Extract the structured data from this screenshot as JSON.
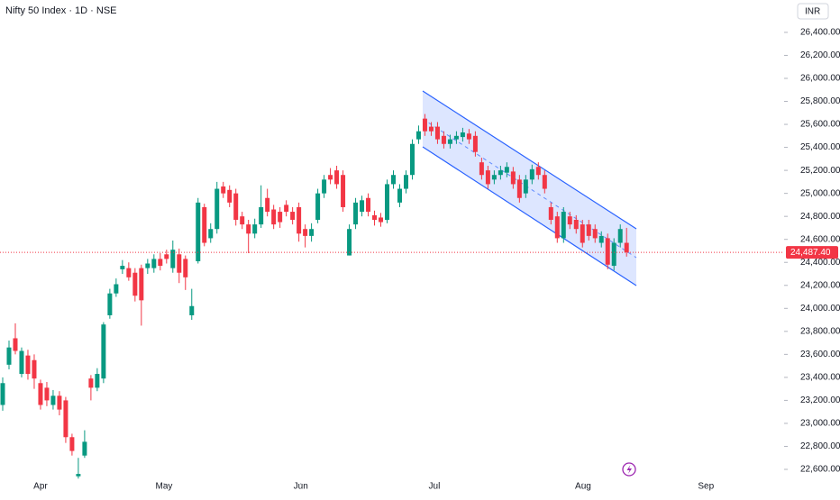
{
  "chart_data": {
    "type": "candlestick",
    "title": "Nifty 50 Index · 1D · NSE",
    "currency": "INR",
    "up_color": "#089981",
    "down_color": "#f23645",
    "open": [
      23160,
      23510,
      23740,
      23430,
      23590,
      23550,
      23350,
      23310,
      23160,
      23240,
      23200,
      22880,
      22540,
      22720,
      23390,
      23310,
      23390,
      23940,
      24130,
      24340,
      24350,
      24310,
      24350,
      24350,
      24350,
      24430,
      24470,
      24350,
      24470,
      24430,
      23940,
      24410,
      24880,
      24610,
      24690,
      25060,
      25030,
      25000,
      24800,
      24730,
      24650,
      24730,
      24960,
      24860,
      24840,
      24900,
      24840,
      24880,
      24690,
      24630,
      24770,
      25000,
      25160,
      25200,
      25160,
      24460,
      24730,
      24840,
      24960,
      24810,
      24790,
      24770,
      25080,
      24920,
      25040,
      25160,
      25470,
      25650,
      25580,
      25580,
      25500,
      25430,
      25470,
      25490,
      25520,
      25500,
      25270,
      25200,
      25120,
      25160,
      25180,
      25190,
      25120,
      25000,
      25120,
      25230,
      25160,
      24880,
      24800,
      24610,
      24800,
      24770,
      24730,
      24730,
      24690,
      24570,
      24610,
      24370,
      24570,
      24570
    ],
    "high": [
      23400,
      23720,
      23870,
      23660,
      23640,
      23600,
      23380,
      23360,
      23290,
      23280,
      23230,
      22910,
      22700,
      22940,
      23420,
      23480,
      23880,
      24170,
      24260,
      24420,
      24400,
      24350,
      24380,
      24430,
      24470,
      24480,
      24510,
      24590,
      24520,
      24460,
      24170,
      24960,
      24910,
      24740,
      25100,
      25100,
      25070,
      25040,
      24840,
      24770,
      24780,
      25070,
      25040,
      24900,
      24880,
      24940,
      24880,
      24920,
      24730,
      24740,
      25040,
      25160,
      25220,
      25240,
      25200,
      24730,
      24960,
      24980,
      25000,
      24850,
      24830,
      25120,
      25200,
      25080,
      25200,
      25470,
      25590,
      25690,
      25620,
      25620,
      25540,
      25510,
      25540,
      25570,
      25560,
      25540,
      25310,
      25240,
      25200,
      25240,
      25270,
      25230,
      25160,
      25160,
      25250,
      25270,
      25200,
      24920,
      24840,
      24880,
      24840,
      24810,
      24770,
      24770,
      24730,
      24670,
      24650,
      24610,
      24730,
      24700
    ],
    "low": [
      23110,
      23470,
      23600,
      23400,
      23380,
      23300,
      23120,
      23150,
      23120,
      23070,
      22830,
      22720,
      22520,
      22700,
      23200,
      23280,
      23350,
      23910,
      24100,
      24300,
      24240,
      24060,
      23850,
      24300,
      24310,
      24330,
      24390,
      24310,
      24220,
      24160,
      23900,
      24390,
      24540,
      24570,
      24650,
      24960,
      24880,
      24720,
      24690,
      24480,
      24610,
      24700,
      24800,
      24690,
      24700,
      24800,
      24730,
      24580,
      24530,
      24580,
      24740,
      24960,
      25080,
      25040,
      24840,
      24460,
      24690,
      24800,
      24800,
      24720,
      24710,
      24740,
      25040,
      24880,
      25000,
      25120,
      25430,
      25500,
      25500,
      25430,
      25390,
      25390,
      25430,
      25450,
      25430,
      25320,
      25120,
      25040,
      25080,
      25120,
      25140,
      25040,
      24920,
      24960,
      25080,
      25120,
      25000,
      24730,
      24570,
      24570,
      24690,
      24650,
      24530,
      24590,
      24570,
      24530,
      24340,
      24330,
      24530,
      24450
    ],
    "close": [
      23350,
      23660,
      23630,
      23630,
      23430,
      23390,
      23160,
      23200,
      23240,
      23120,
      22880,
      22760,
      22560,
      22840,
      23310,
      23430,
      23860,
      24130,
      24210,
      24370,
      24270,
      24110,
      24070,
      24390,
      24430,
      24370,
      24430,
      24510,
      24310,
      24270,
      24020,
      24920,
      24570,
      24690,
      25040,
      25000,
      24920,
      24770,
      24730,
      24650,
      24730,
      24880,
      24840,
      24730,
      24750,
      24840,
      24770,
      24650,
      24630,
      24690,
      25000,
      25120,
      25120,
      25080,
      24880,
      24690,
      24920,
      24940,
      24840,
      24770,
      24750,
      25080,
      25160,
      25040,
      25160,
      25430,
      25540,
      25540,
      25540,
      25470,
      25430,
      25470,
      25500,
      25530,
      25470,
      25360,
      25160,
      25080,
      25160,
      25200,
      25230,
      25080,
      24960,
      25120,
      25210,
      25160,
      25040,
      24770,
      24610,
      24840,
      24730,
      24690,
      24570,
      24630,
      24610,
      24630,
      24380,
      24570,
      24690,
      24487.4
    ],
    "last_price": 24487.4,
    "last_price_label": "24,487.40",
    "xlim": [
      -0.43,
      124
    ],
    "xticks": [
      {
        "value": 6,
        "label": "Apr"
      },
      {
        "value": 25.6,
        "label": "May"
      },
      {
        "value": 47.3,
        "label": "Jun"
      },
      {
        "value": 68.5,
        "label": "Jul"
      },
      {
        "value": 92.1,
        "label": "Aug"
      },
      {
        "value": 111.6,
        "label": "Sep"
      }
    ],
    "ylim": [
      22482.5,
      26681.5
    ],
    "yticks": [
      {
        "value": 22600,
        "label": "22,600.00"
      },
      {
        "value": 22800,
        "label": "22,800.00"
      },
      {
        "value": 23000,
        "label": "23,000.00"
      },
      {
        "value": 23200,
        "label": "23,200.00"
      },
      {
        "value": 23400,
        "label": "23,400.00"
      },
      {
        "value": 23600,
        "label": "23,600.00"
      },
      {
        "value": 23800,
        "label": "23,800.00"
      },
      {
        "value": 24000,
        "label": "24,000.00"
      },
      {
        "value": 24200,
        "label": "24,200.00"
      },
      {
        "value": 24400,
        "label": "24,400.00"
      },
      {
        "value": 24600,
        "label": "24,600.00"
      },
      {
        "value": 24800,
        "label": "24,800.00"
      },
      {
        "value": 25000,
        "label": "25,000.00"
      },
      {
        "value": 25200,
        "label": "25,200.00"
      },
      {
        "value": 25400,
        "label": "25,400.00"
      },
      {
        "value": 25600,
        "label": "25,600.00"
      },
      {
        "value": 25800,
        "label": "25,800.00"
      },
      {
        "value": 26000,
        "label": "26,000.00"
      },
      {
        "value": 26200,
        "label": "26,200.00"
      },
      {
        "value": 26400,
        "label": "26,400.00"
      }
    ],
    "grid": false
  }
}
